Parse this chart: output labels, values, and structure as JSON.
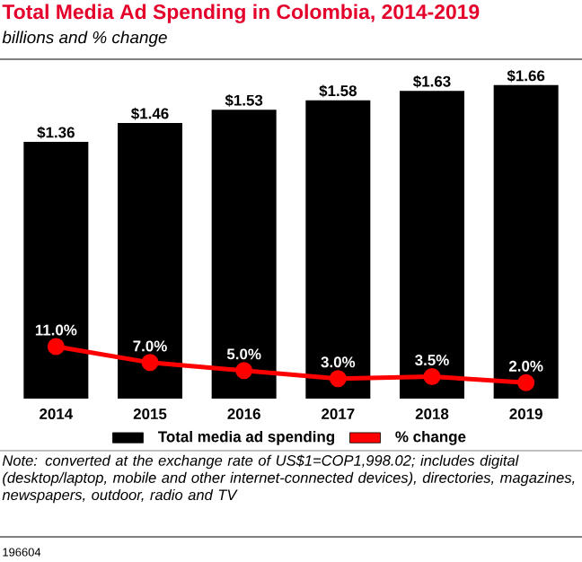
{
  "chart_data": {
    "type": "bar",
    "title": "Total Media Ad Spending in Colombia, 2014-2019",
    "subtitle": "billions and % change",
    "categories": [
      "2014",
      "2015",
      "2016",
      "2017",
      "2018",
      "2019"
    ],
    "series": [
      {
        "name": "Total media ad spending",
        "color": "#000000",
        "values": [
          1.36,
          1.46,
          1.53,
          1.58,
          1.63,
          1.66
        ],
        "value_labels": [
          "$1.36",
          "$1.46",
          "$1.53",
          "$1.58",
          "$1.63",
          "$1.66"
        ]
      },
      {
        "name": "% change",
        "type": "line",
        "axis": "y2",
        "color": "#ff0000",
        "marker": "circle",
        "values": [
          11.0,
          7.0,
          5.0,
          3.0,
          3.5,
          2.0
        ],
        "value_labels": [
          "11.0%",
          "7.0%",
          "5.0%",
          "3.0%",
          "3.5%",
          "2.0%"
        ]
      }
    ],
    "tick_labels": "x",
    "legend": "bottom",
    "annotations": [
      "Note: converted at the exchange rate of US$1=COP1,998.02; includes digital (desktop/laptop, mobile and other internet-connected devices), directories, magazines, newspapers, outdoor, radio and TV",
      "196604"
    ]
  }
}
